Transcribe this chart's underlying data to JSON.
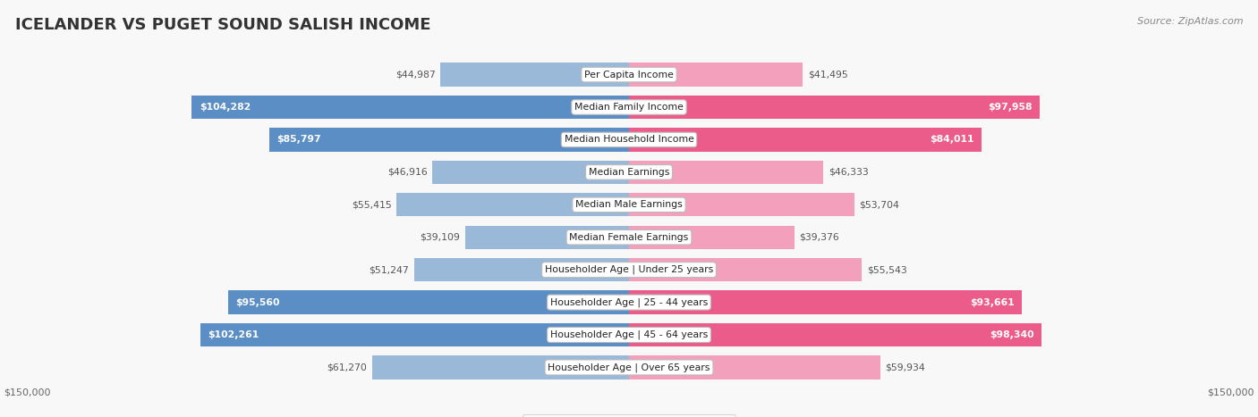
{
  "title": "ICELANDER VS PUGET SOUND SALISH INCOME",
  "source": "Source: ZipAtlas.com",
  "max_val": 150000,
  "categories": [
    "Per Capita Income",
    "Median Family Income",
    "Median Household Income",
    "Median Earnings",
    "Median Male Earnings",
    "Median Female Earnings",
    "Householder Age | Under 25 years",
    "Householder Age | 25 - 44 years",
    "Householder Age | 45 - 64 years",
    "Householder Age | Over 65 years"
  ],
  "icelander_values": [
    44987,
    104282,
    85797,
    46916,
    55415,
    39109,
    51247,
    95560,
    102261,
    61270
  ],
  "salish_values": [
    41495,
    97958,
    84011,
    46333,
    53704,
    39376,
    55543,
    93661,
    98340,
    59934
  ],
  "icelander_labels": [
    "$44,987",
    "$104,282",
    "$85,797",
    "$46,916",
    "$55,415",
    "$39,109",
    "$51,247",
    "$95,560",
    "$102,261",
    "$61,270"
  ],
  "salish_labels": [
    "$41,495",
    "$97,958",
    "$84,011",
    "$46,333",
    "$53,704",
    "$39,376",
    "$55,543",
    "$93,661",
    "$98,340",
    "$59,934"
  ],
  "icelander_color": "#9ab8d8",
  "salish_color": "#f2a0bb",
  "icelander_color_strong": "#5b8ec4",
  "salish_color_strong": "#eb5c8a",
  "bg_color": "#f0f0f0",
  "row_bg_odd": "#f8f8f8",
  "row_bg_even": "#ffffff",
  "row_border": "#d8d8d8",
  "label_color_inside": "#ffffff",
  "label_color_outside": "#555555",
  "threshold_pct": 0.56
}
